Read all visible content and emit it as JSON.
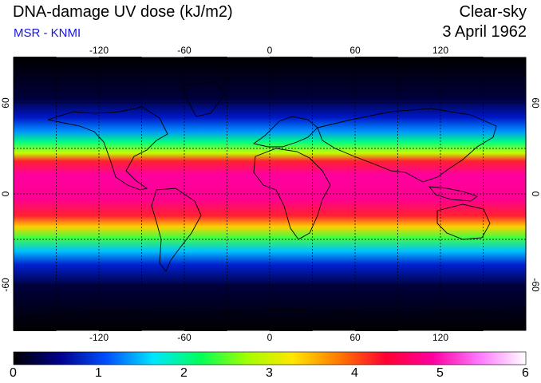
{
  "header": {
    "title": "DNA-damage UV dose (kJ/m2)",
    "subtitle": "MSR - KNMI",
    "sky_condition": "Clear-sky",
    "date": "3 April 1962"
  },
  "map": {
    "projection": "equirectangular",
    "lon_ticks": [
      "-120",
      "-60",
      "0",
      "60",
      "120"
    ],
    "lat_ticks": [
      "60",
      "0",
      "-60"
    ],
    "lat_ticks_right": [
      "60",
      "0",
      "-60"
    ],
    "grid": "dashed, 30° spacing",
    "features": [
      "continent-coastlines"
    ]
  },
  "colorbar": {
    "ticks": [
      "0",
      "1",
      "2",
      "3",
      "4",
      "5",
      "6"
    ],
    "colors": [
      "#000000",
      "#00008c",
      "#0050ff",
      "#00e6ff",
      "#00ff5a",
      "#a0ff00",
      "#ffe600",
      "#ff7800",
      "#ff0032",
      "#ff00a0",
      "#ff78ff",
      "#ffffff"
    ]
  },
  "colors": {
    "subtitle": "#1414e6",
    "frame": "#000000",
    "grid": "#000000"
  }
}
